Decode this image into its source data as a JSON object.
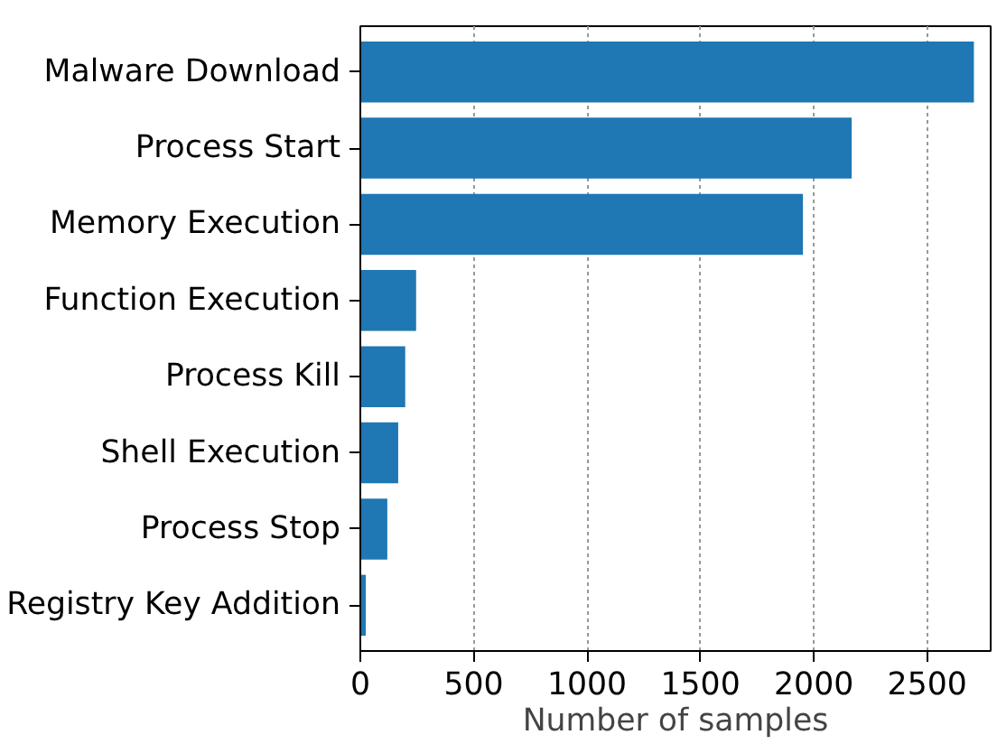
{
  "chart_data": {
    "type": "bar",
    "orientation": "horizontal",
    "xlabel": "Number of samples",
    "categories": [
      "Malware Download",
      "Process Start",
      "Memory Execution",
      "Function Execution",
      "Process Kill",
      "Shell Execution",
      "Process Stop",
      "Registry Key Addition"
    ],
    "values": [
      2706,
      2167,
      1952,
      246,
      198,
      167,
      119,
      24
    ],
    "color": "#1f77b4",
    "xlim": [
      0,
      2780
    ],
    "xticks": [
      0,
      500,
      1000,
      1500,
      2000,
      2500
    ],
    "grid": "x"
  }
}
